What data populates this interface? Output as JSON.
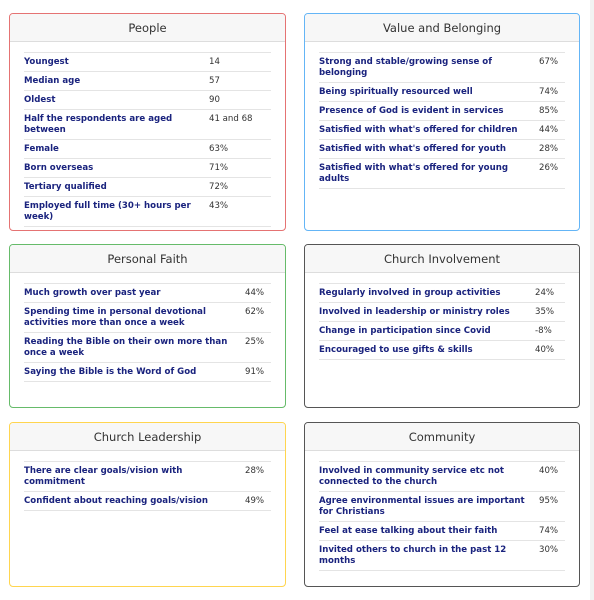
{
  "people": {
    "title": "People",
    "rows": [
      {
        "label": "Youngest",
        "value": "14"
      },
      {
        "label": "Median age",
        "value": "57"
      },
      {
        "label": "Oldest",
        "value": "90"
      },
      {
        "label": "Half the respondents are aged between",
        "value": "41 and 68"
      },
      {
        "label": "Female",
        "value": "63%"
      },
      {
        "label": "Born overseas",
        "value": "71%"
      },
      {
        "label": "Tertiary qualified",
        "value": "72%"
      },
      {
        "label": "Employed full time (30+ hours per week)",
        "value": "43%"
      }
    ]
  },
  "value_belonging": {
    "title": "Value and Belonging",
    "rows": [
      {
        "label": "Strong and stable/growing sense of belonging",
        "value": "67%"
      },
      {
        "label": "Being spiritually resourced well",
        "value": "74%"
      },
      {
        "label": "Presence of God is evident in services",
        "value": "85%"
      },
      {
        "label": "Satisfied with what's offered for children",
        "value": "44%"
      },
      {
        "label": "Satisfied with what's offered for youth",
        "value": "28%"
      },
      {
        "label": "Satisfied with what's offered for young adults",
        "value": "26%"
      }
    ]
  },
  "personal_faith": {
    "title": "Personal Faith",
    "rows": [
      {
        "label": "Much growth over past year",
        "value": "44%"
      },
      {
        "label": "Spending time in personal devotional activities more than once a week",
        "value": "62%"
      },
      {
        "label": "Reading the Bible on their own more than once a week",
        "value": "25%"
      },
      {
        "label": "Saying the Bible is the Word of God",
        "value": "91%"
      }
    ]
  },
  "church_involvement": {
    "title": "Church Involvement",
    "rows": [
      {
        "label": "Regularly involved in group activities",
        "value": "24%"
      },
      {
        "label": "Involved in leadership or ministry roles",
        "value": "35%"
      },
      {
        "label": "Change in participation since Covid",
        "value": "-8%"
      },
      {
        "label": "Encouraged to use gifts & skills",
        "value": "40%"
      }
    ]
  },
  "church_leadership": {
    "title": "Church Leadership",
    "rows": [
      {
        "label": "There are clear goals/vision with commitment",
        "value": "28%"
      },
      {
        "label": "Confident about reaching goals/vision",
        "value": "49%"
      }
    ]
  },
  "community": {
    "title": "Community",
    "rows": [
      {
        "label": "Involved in community service etc not connected to the church",
        "value": "40%"
      },
      {
        "label": "Agree environmental issues are important for Christians",
        "value": "95%"
      },
      {
        "label": "Feel at ease talking about their faith",
        "value": "74%"
      },
      {
        "label": "Invited others to church in the past 12 months",
        "value": "30%"
      }
    ]
  },
  "colors": {
    "people_border": "#e57373",
    "value_border": "#64b5f6",
    "faith_border": "#66bb6a",
    "leadership_border": "#ffd54f",
    "neutral_border": "#555555",
    "label_text": "#1a237e"
  }
}
